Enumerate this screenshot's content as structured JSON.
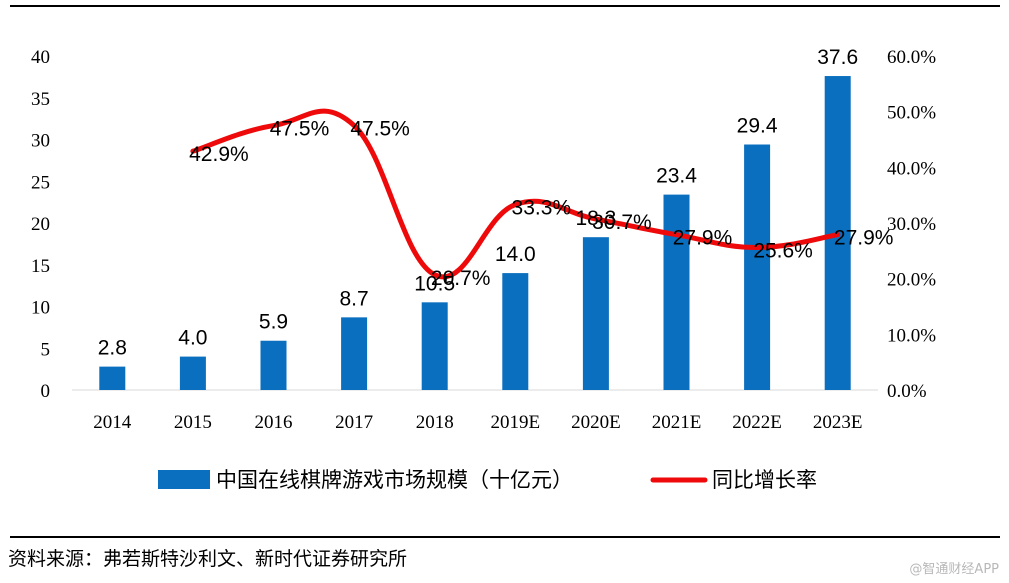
{
  "chart_data": {
    "type": "bar+line",
    "categories": [
      "2014",
      "2015",
      "2016",
      "2017",
      "2018",
      "2019E",
      "2020E",
      "2021E",
      "2022E",
      "2023E"
    ],
    "series": [
      {
        "name": "中国在线棋牌游戏市场规模（十亿元）",
        "type": "bar",
        "axis": "left",
        "color": "#0a6fbe",
        "values": [
          2.8,
          4.0,
          5.9,
          8.7,
          10.5,
          14.0,
          18.3,
          23.4,
          29.4,
          37.6
        ],
        "labels": [
          "2.8",
          "4.0",
          "5.9",
          "8.7",
          "10.5",
          "14.0",
          "18.3",
          "23.4",
          "29.4",
          "37.6"
        ]
      },
      {
        "name": "同比增长率",
        "type": "line",
        "axis": "right",
        "color": "#ee0a0a",
        "values": [
          null,
          42.9,
          47.5,
          47.5,
          20.7,
          33.3,
          30.7,
          27.9,
          25.6,
          27.9
        ],
        "labels": [
          "",
          "42.9%",
          "47.5%",
          "47.5%",
          "20.7%",
          "33.3%",
          "30.7%",
          "27.9%",
          "25.6%",
          "27.9%"
        ]
      }
    ],
    "y_left": {
      "ticks": [
        "0",
        "5",
        "10",
        "15",
        "20",
        "25",
        "30",
        "35",
        "40"
      ],
      "ylim": [
        0,
        40
      ]
    },
    "y_right": {
      "ticks": [
        "0.0%",
        "10.0%",
        "20.0%",
        "30.0%",
        "40.0%",
        "50.0%",
        "60.0%"
      ],
      "ylim": [
        0,
        60
      ]
    },
    "legend_position": "bottom"
  },
  "source": "资料来源：弗若斯特沙利文、新时代证券研究所",
  "watermark": "@智通财经APP"
}
